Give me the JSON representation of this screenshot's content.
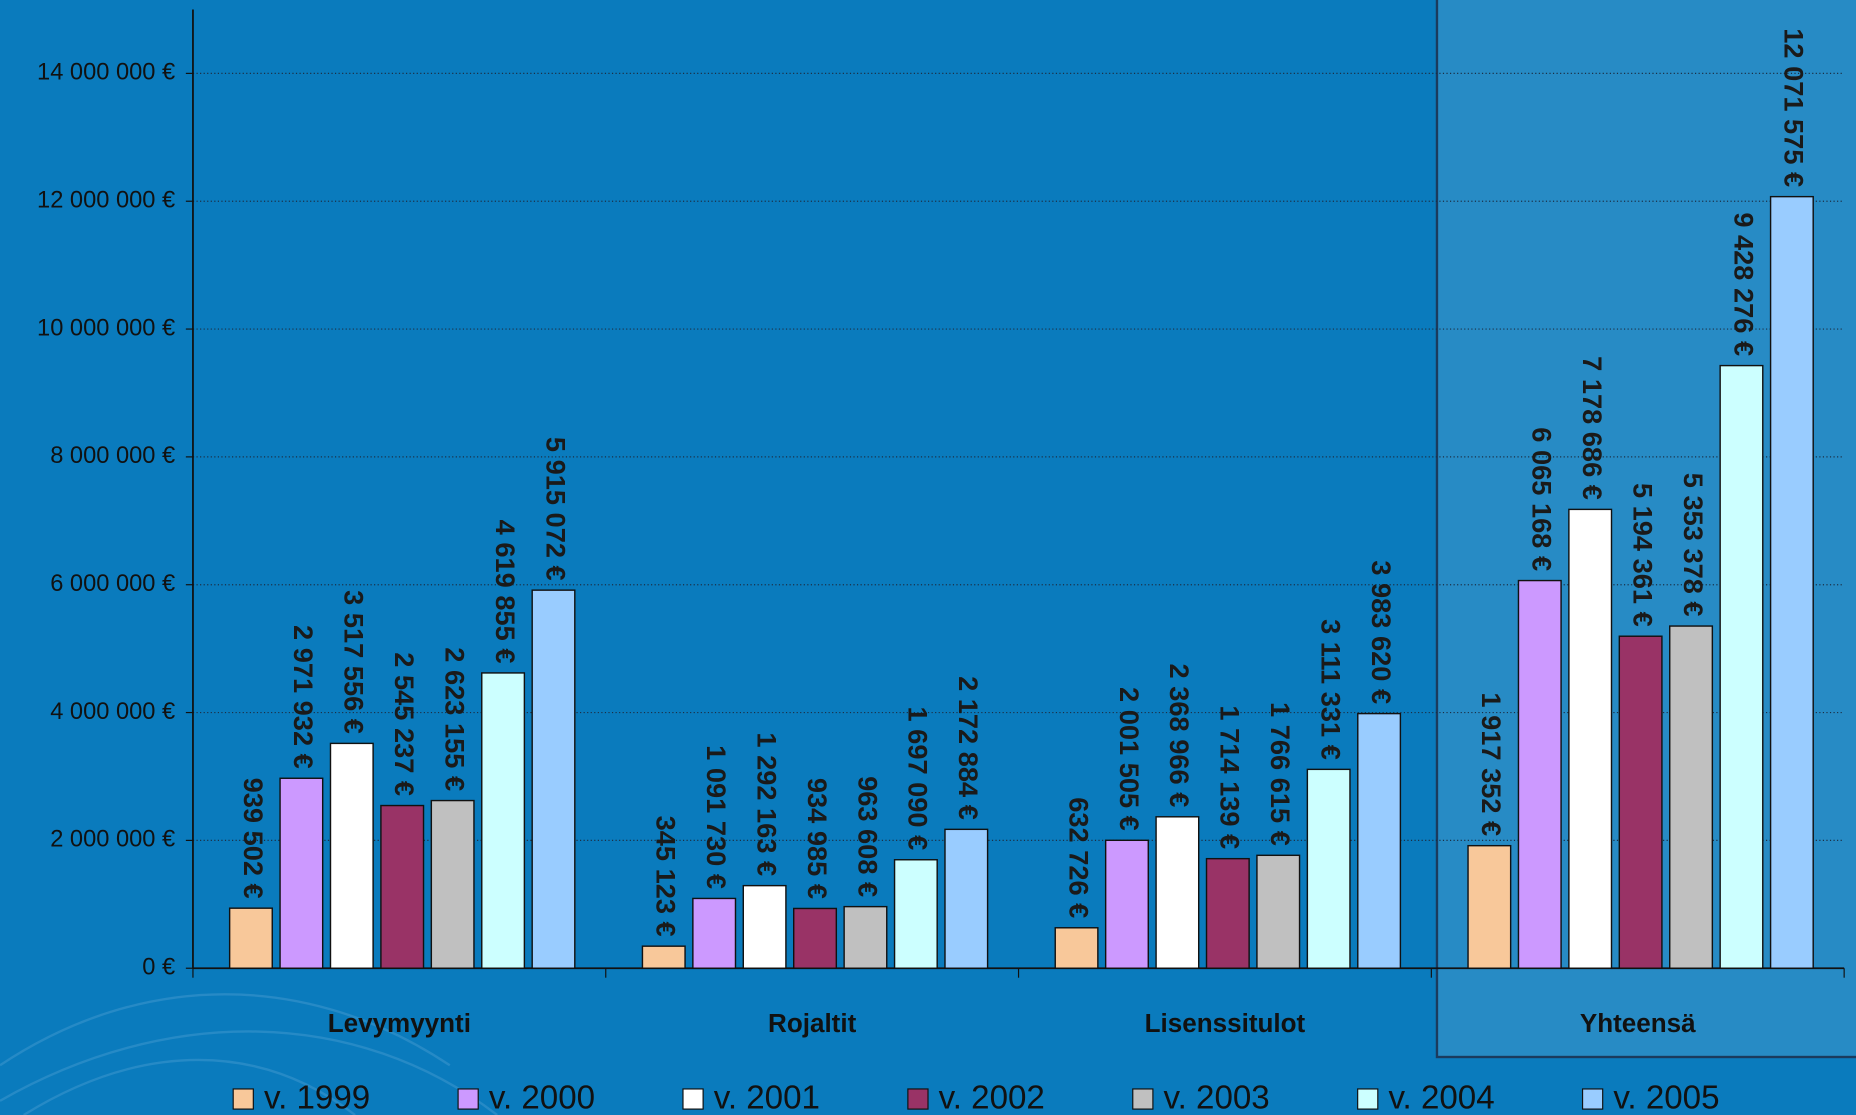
{
  "chart_data": {
    "type": "bar",
    "categories": [
      "Levymyynti",
      "Rojaltit",
      "Lisenssitulot",
      "Yhteensä"
    ],
    "series": [
      {
        "name": "v. 1999",
        "color": "#f8c89a",
        "values": [
          939502,
          345123,
          632726,
          1917352
        ],
        "value_labels": [
          "939 502 €",
          "345 123 €",
          "632 726 €",
          "1 917 352 €"
        ]
      },
      {
        "name": "v. 2000",
        "color": "#cc99ff",
        "values": [
          2971932,
          1091730,
          2001505,
          6065168
        ],
        "value_labels": [
          "2 971 932 €",
          "1 091 730 €",
          "2 001 505 €",
          "6 065 168 €"
        ]
      },
      {
        "name": "v. 2001",
        "color": "#ffffff",
        "values": [
          3517556,
          1292163,
          2368966,
          7178686
        ],
        "value_labels": [
          "3 517 556 €",
          "1 292 163 €",
          "2 368 966 €",
          "7 178 686 €"
        ]
      },
      {
        "name": "v. 2002",
        "color": "#993366",
        "values": [
          2545237,
          934985,
          1714139,
          5194361
        ],
        "value_labels": [
          "2 545 237 €",
          "934 985 €",
          "1 714 139 €",
          "5 194 361 €"
        ]
      },
      {
        "name": "v. 2003",
        "color": "#c0c0c0",
        "values": [
          2623155,
          963608,
          1766615,
          5353378
        ],
        "value_labels": [
          "2 623 155 €",
          "963 608 €",
          "1 766 615 €",
          "5 353 378 €"
        ]
      },
      {
        "name": "v. 2004",
        "color": "#ccffff",
        "values": [
          4619855,
          1697090,
          3111331,
          9428276
        ],
        "value_labels": [
          "4 619 855 €",
          "1 697 090 €",
          "3 111 331 €",
          "9 428 276 €"
        ]
      },
      {
        "name": "v. 2005",
        "color": "#99ccff",
        "values": [
          5915072,
          2172884,
          3983620,
          12071575
        ],
        "value_labels": [
          "5 915 072 €",
          "2 172 884 €",
          "3 983 620 €",
          "12 071 575 €"
        ]
      }
    ],
    "ylim": [
      0,
      15000000
    ],
    "yticks": [
      {
        "value": 0,
        "label": "0 €"
      },
      {
        "value": 2000000,
        "label": "2 000 000 €"
      },
      {
        "value": 4000000,
        "label": "4 000 000 €"
      },
      {
        "value": 6000000,
        "label": "6 000 000 €"
      },
      {
        "value": 8000000,
        "label": "8 000 000 €"
      },
      {
        "value": 10000000,
        "label": "10 000 000 €"
      },
      {
        "value": 12000000,
        "label": "12 000 000 €"
      },
      {
        "value": 14000000,
        "label": "14 000 000 €"
      }
    ],
    "grid": true
  }
}
